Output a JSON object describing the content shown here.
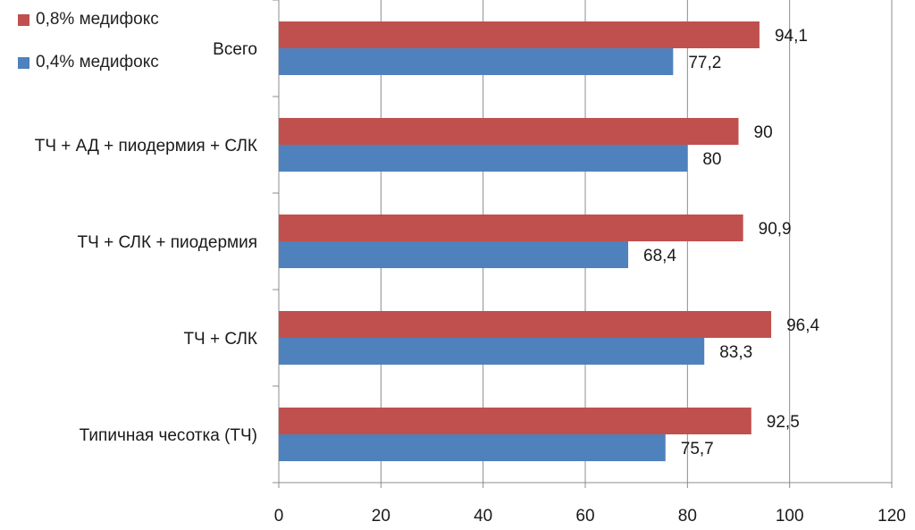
{
  "chart_data": {
    "type": "bar",
    "orientation": "horizontal",
    "title": "",
    "xlabel": "",
    "ylabel": "",
    "categories": [
      "Всего",
      "ТЧ + АД + пиодермия  + СЛК",
      "ТЧ + СЛК + пиодермия",
      "ТЧ + СЛК",
      "Типичная чесотка (ТЧ)"
    ],
    "series": [
      {
        "name": "0,8% медифокс",
        "color": "#C0504D",
        "values": [
          94.1,
          90,
          90.9,
          96.4,
          92.5
        ],
        "labels": [
          "94,1",
          "90",
          "90,9",
          "96,4",
          "92,5"
        ]
      },
      {
        "name": "0,4% медифокс",
        "color": "#4F81BD",
        "values": [
          77.2,
          80,
          68.4,
          83.3,
          75.7
        ],
        "labels": [
          "77,2",
          "80",
          "68,4",
          "83,3",
          "75,7"
        ]
      }
    ],
    "xlim": [
      0,
      120
    ],
    "xticks": [
      0,
      20,
      40,
      60,
      80,
      100,
      120
    ],
    "grid": true,
    "legend_position": "top-left"
  }
}
